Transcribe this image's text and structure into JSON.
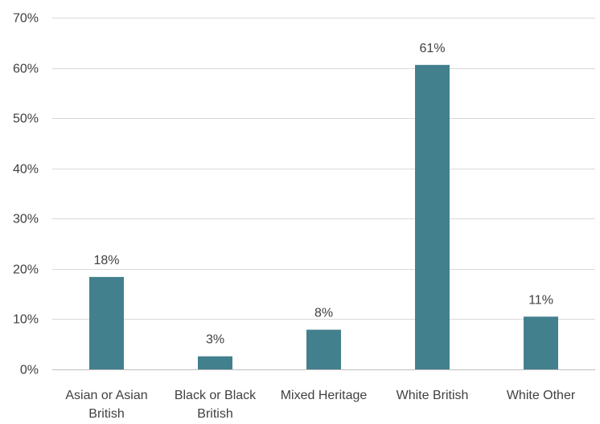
{
  "chart_data": {
    "type": "bar",
    "categories": [
      [
        "Asian or Asian",
        "British"
      ],
      [
        "Black or Black",
        "British"
      ],
      [
        "Mixed Heritage"
      ],
      [
        "White British"
      ],
      [
        "White Other"
      ]
    ],
    "values": [
      18.4,
      2.6,
      7.9,
      60.6,
      10.5
    ],
    "data_labels": [
      "18%",
      "3%",
      "8%",
      "61%",
      "11%"
    ],
    "ylim": [
      0,
      70
    ],
    "yticks": [
      0,
      10,
      20,
      30,
      40,
      50,
      60,
      70
    ],
    "ytick_labels": [
      "0%",
      "10%",
      "20%",
      "30%",
      "40%",
      "50%",
      "60%",
      "70%"
    ],
    "title": "",
    "xlabel": "",
    "ylabel": "",
    "grid": "horizontal",
    "legend": "none",
    "colors": {
      "bar": "#43808D",
      "grid": "#d9d9d9",
      "text": "#404040"
    }
  }
}
